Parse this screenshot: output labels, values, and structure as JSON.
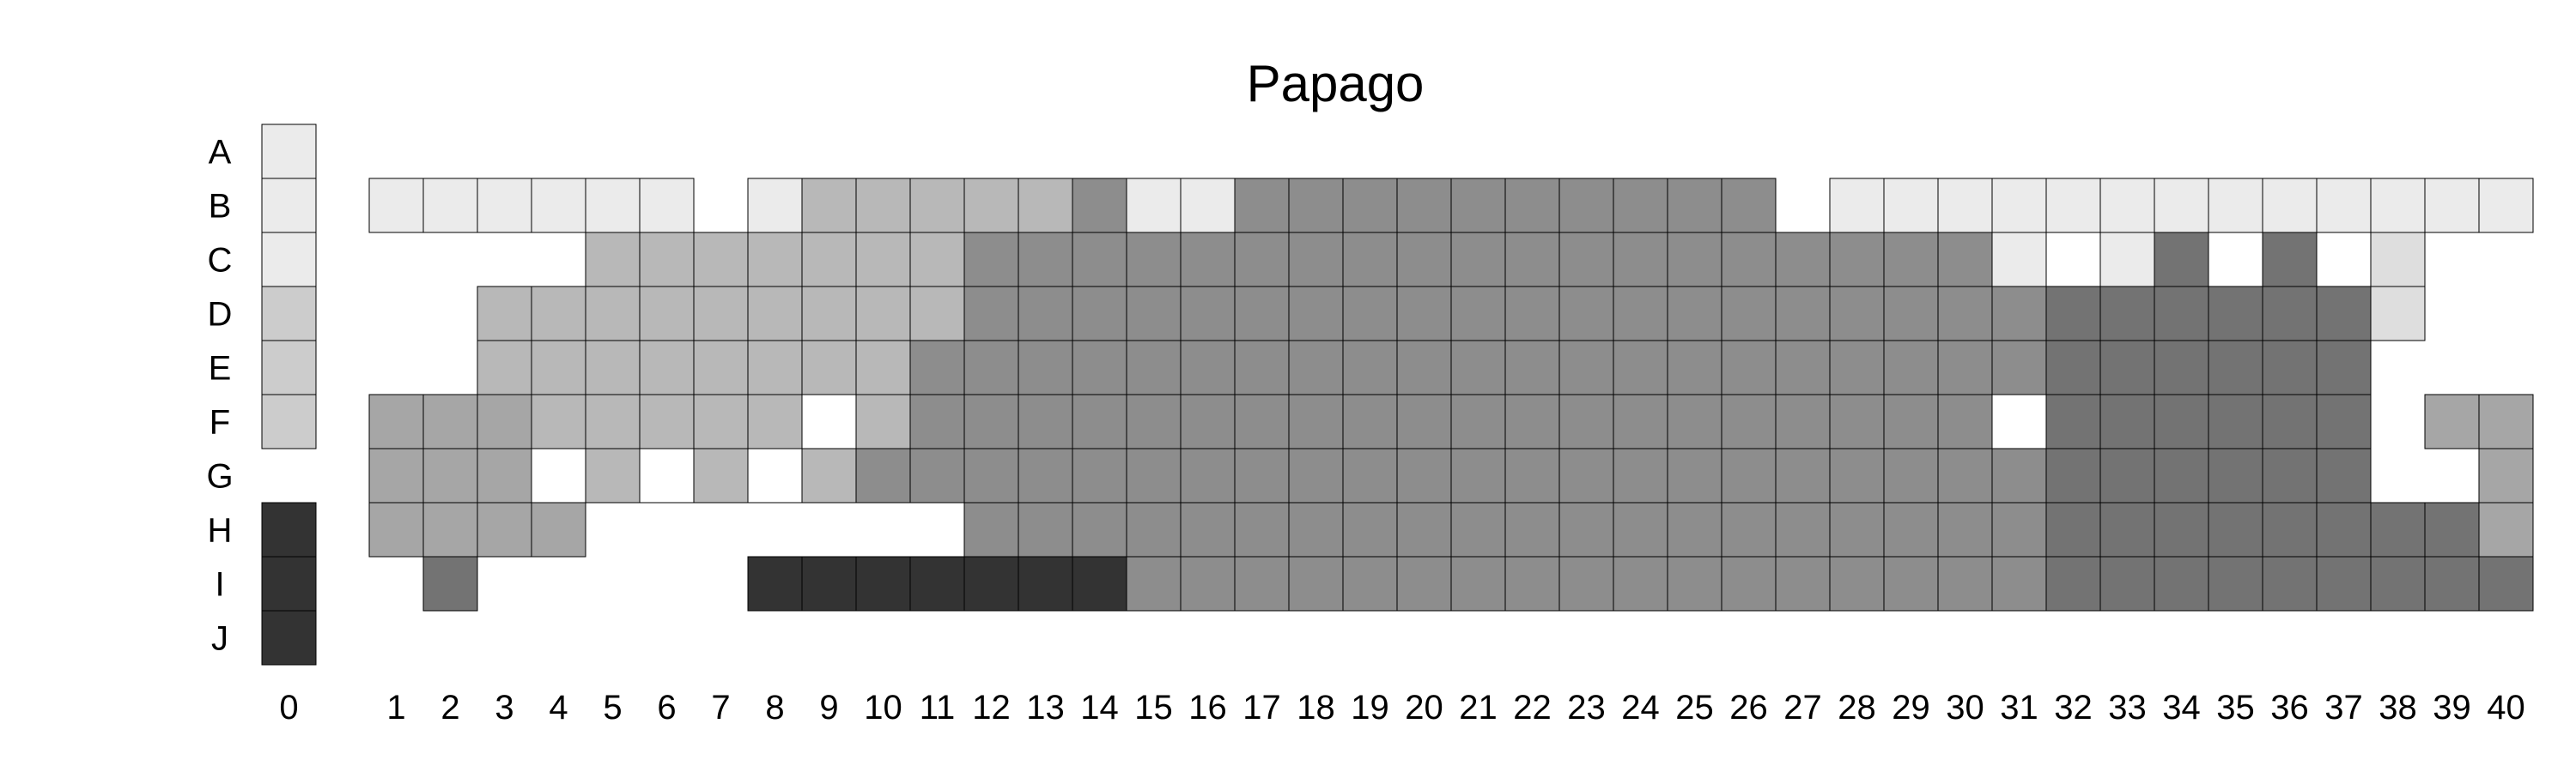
{
  "chart_data": {
    "type": "heatmap",
    "title": "Papago",
    "xlabel": "",
    "ylabel": "",
    "rows": [
      "A",
      "B",
      "C",
      "D",
      "E",
      "F",
      "G",
      "H",
      "I",
      "J"
    ],
    "columns": [
      "0",
      "1",
      "2",
      "3",
      "4",
      "5",
      "6",
      "7",
      "8",
      "9",
      "10",
      "11",
      "12",
      "13",
      "14",
      "15",
      "16",
      "17",
      "18",
      "19",
      "20",
      "21",
      "22",
      "23",
      "24",
      "25",
      "26",
      "27",
      "28",
      "29",
      "30",
      "31",
      "32",
      "33",
      "34",
      "35",
      "36",
      "37",
      "38",
      "39",
      "40"
    ],
    "value_scale": "grey level 0 (black) to 9 (white); null = empty",
    "legend": "none",
    "grid": "cell borders",
    "matrix": [
      [
        8.2,
        null,
        null,
        null,
        null,
        null,
        null,
        null,
        null,
        null,
        null,
        null,
        null,
        null,
        null,
        null,
        null,
        null,
        null,
        null,
        null,
        null,
        null,
        null,
        null,
        null,
        null,
        null,
        null,
        null,
        null,
        null,
        null,
        null,
        null,
        null,
        null,
        null,
        null,
        null,
        null
      ],
      [
        8.2,
        8.2,
        8.2,
        8.2,
        8.2,
        8.2,
        8.2,
        null,
        8.2,
        6.2,
        6.2,
        6.2,
        6.2,
        6.2,
        4.5,
        8.2,
        8.2,
        4.5,
        4.5,
        4.5,
        4.5,
        4.5,
        4.5,
        4.5,
        4.5,
        4.5,
        4.5,
        null,
        8.2,
        8.2,
        8.2,
        8.2,
        8.2,
        8.2,
        8.2,
        8.2,
        8.2,
        8.2,
        8.2,
        8.2,
        8.2
      ],
      [
        8.2,
        null,
        null,
        null,
        null,
        6.2,
        6.2,
        6.2,
        6.2,
        6.2,
        6.2,
        6.2,
        4.5,
        4.5,
        4.5,
        4.5,
        4.5,
        4.5,
        4.5,
        4.5,
        4.5,
        4.5,
        4.5,
        4.5,
        4.5,
        4.5,
        4.5,
        4.5,
        4.5,
        4.5,
        4.5,
        8.2,
        9,
        8.2,
        3.5,
        9,
        3.5,
        9,
        7.7,
        null,
        null
      ],
      [
        7,
        null,
        null,
        6.2,
        6.2,
        6.2,
        6.2,
        6.2,
        6.2,
        6.2,
        6.2,
        6.2,
        4.5,
        4.5,
        4.5,
        4.5,
        4.5,
        4.5,
        4.5,
        4.5,
        4.5,
        4.5,
        4.5,
        4.5,
        4.5,
        4.5,
        4.5,
        4.5,
        4.5,
        4.5,
        4.5,
        4.5,
        3.5,
        3.5,
        3.5,
        3.5,
        3.5,
        3.5,
        7.7,
        null,
        null
      ],
      [
        7,
        null,
        null,
        6.2,
        6.2,
        6.2,
        6.2,
        6.2,
        6.2,
        6.2,
        6.2,
        4.5,
        4.5,
        4.5,
        4.5,
        4.5,
        4.5,
        4.5,
        4.5,
        4.5,
        4.5,
        4.5,
        4.5,
        4.5,
        4.5,
        4.5,
        4.5,
        4.5,
        4.5,
        4.5,
        4.5,
        4.5,
        3.5,
        3.5,
        3.5,
        3.5,
        3.5,
        3.5,
        null,
        null,
        null
      ],
      [
        7,
        5.5,
        5.5,
        5.5,
        6.2,
        6.2,
        6.2,
        6.2,
        6.2,
        9,
        6.2,
        4.5,
        4.5,
        4.5,
        4.5,
        4.5,
        4.5,
        4.5,
        4.5,
        4.5,
        4.5,
        4.5,
        4.5,
        4.5,
        4.5,
        4.5,
        4.5,
        4.5,
        4.5,
        4.5,
        4.5,
        9,
        3.5,
        3.5,
        3.5,
        3.5,
        3.5,
        3.5,
        null,
        5.5,
        5.5
      ],
      [
        null,
        5.5,
        5.5,
        5.5,
        9,
        6.2,
        9,
        6.2,
        9,
        6.2,
        4.5,
        4.5,
        4.5,
        4.5,
        4.5,
        4.5,
        4.5,
        4.5,
        4.5,
        4.5,
        4.5,
        4.5,
        4.5,
        4.5,
        4.5,
        4.5,
        4.5,
        4.5,
        4.5,
        4.5,
        4.5,
        4.5,
        3.5,
        3.5,
        3.5,
        3.5,
        3.5,
        3.5,
        null,
        null,
        5.5
      ],
      [
        1,
        5.5,
        5.5,
        5.5,
        5.5,
        null,
        null,
        null,
        null,
        null,
        null,
        null,
        4.5,
        4.5,
        4.5,
        4.5,
        4.5,
        4.5,
        4.5,
        4.5,
        4.5,
        4.5,
        4.5,
        4.5,
        4.5,
        4.5,
        4.5,
        4.5,
        4.5,
        4.5,
        4.5,
        4.5,
        3.5,
        3.5,
        3.5,
        3.5,
        3.5,
        3.5,
        3.5,
        3.5,
        5.5
      ],
      [
        1,
        null,
        3.5,
        null,
        null,
        null,
        null,
        null,
        1,
        1,
        1,
        1,
        1,
        1,
        1,
        4.5,
        4.5,
        4.5,
        4.5,
        4.5,
        4.5,
        4.5,
        4.5,
        4.5,
        4.5,
        4.5,
        4.5,
        4.5,
        4.5,
        4.5,
        4.5,
        4.5,
        3.5,
        3.5,
        3.5,
        3.5,
        3.5,
        3.5,
        3.5,
        3.5,
        3.5
      ],
      [
        1,
        null,
        null,
        null,
        null,
        null,
        null,
        null,
        null,
        null,
        null,
        null,
        null,
        null,
        null,
        null,
        null,
        null,
        null,
        null,
        null,
        null,
        null,
        null,
        null,
        null,
        null,
        null,
        null,
        null,
        null,
        null,
        null,
        null,
        null,
        null,
        null,
        null,
        null,
        null,
        null
      ]
    ]
  }
}
